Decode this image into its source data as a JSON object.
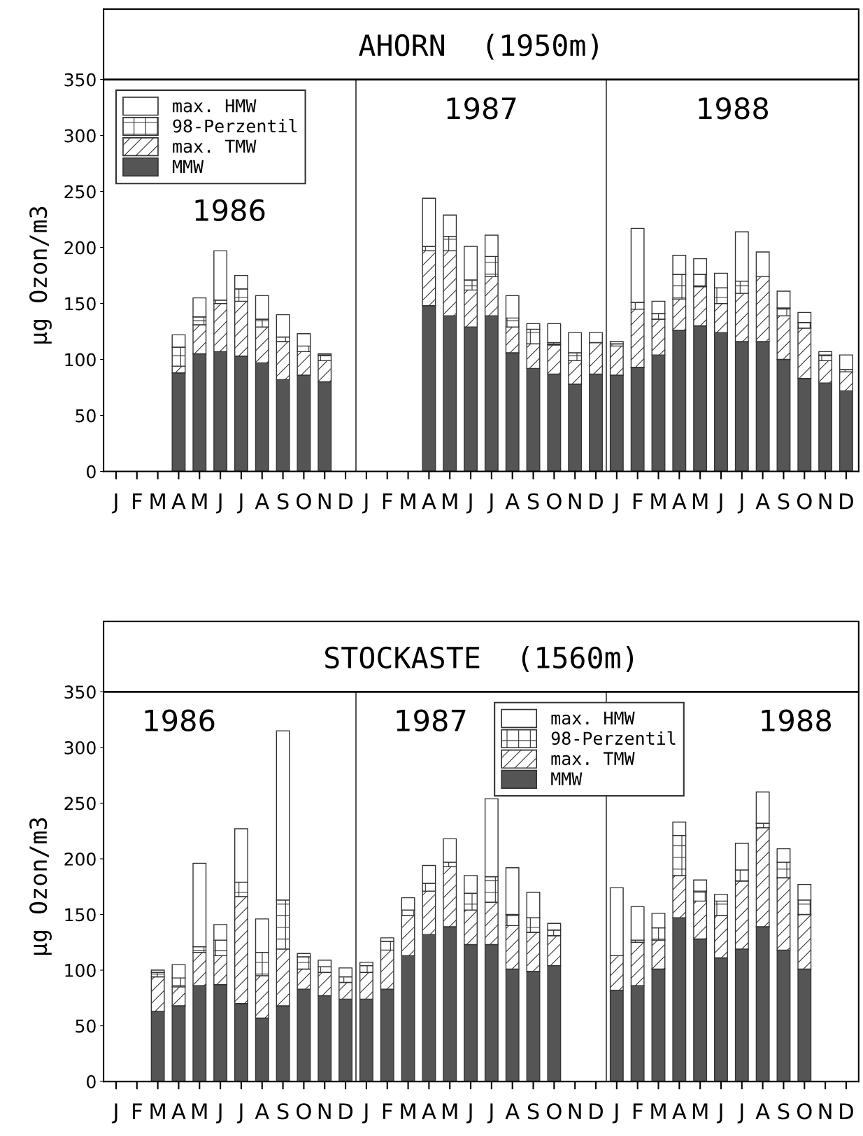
{
  "chart_data": [
    {
      "type": "bar",
      "stacked": true,
      "title": "AHORN  (1950m)",
      "ylabel": "µg Ozon/m3",
      "categories": [
        "J",
        "F",
        "M",
        "A",
        "M",
        "J",
        "J",
        "A",
        "S",
        "O",
        "N",
        "D",
        "J",
        "F",
        "M",
        "A",
        "M",
        "J",
        "J",
        "A",
        "S",
        "O",
        "N",
        "D",
        "J",
        "F",
        "M",
        "A",
        "M",
        "J",
        "J",
        "A",
        "S",
        "O",
        "N",
        "D"
      ],
      "series": [
        {
          "name": "MMW",
          "color": "#555555",
          "values": [
            null,
            null,
            null,
            88,
            105,
            107,
            103,
            97,
            82,
            86,
            80,
            null,
            null,
            null,
            null,
            148,
            139,
            129,
            139,
            106,
            92,
            87,
            78,
            87,
            86,
            93,
            104,
            126,
            130,
            124,
            116,
            116,
            100,
            83,
            79,
            72
          ]
        },
        {
          "name": "max. TMW",
          "color": "#333333",
          "values": [
            null,
            null,
            null,
            6,
            26,
            43,
            49,
            32,
            34,
            21,
            19,
            null,
            null,
            null,
            null,
            49,
            58,
            33,
            35,
            23,
            22,
            26,
            21,
            28,
            26,
            52,
            32,
            28,
            35,
            26,
            43,
            58,
            39,
            45,
            20,
            17
          ]
        },
        {
          "name": "98-Perzentil",
          "color": "#333333",
          "values": [
            null,
            null,
            null,
            17,
            7,
            3,
            11,
            7,
            4,
            5,
            5,
            null,
            null,
            null,
            null,
            4,
            13,
            9,
            18,
            8,
            13,
            2,
            7,
            null,
            2,
            6,
            5,
            22,
            11,
            14,
            11,
            null,
            7,
            5,
            5,
            2
          ]
        },
        {
          "name": "max. HMW",
          "color": "#ffffff",
          "values": [
            null,
            null,
            null,
            11,
            17,
            44,
            12,
            21,
            20,
            11,
            1,
            null,
            null,
            null,
            null,
            43,
            19,
            30,
            19,
            20,
            5,
            17,
            18,
            9,
            2,
            66,
            11,
            17,
            14,
            13,
            44,
            22,
            15,
            9,
            3,
            13
          ]
        }
      ],
      "annotations": [
        "1986",
        "1987",
        "1988"
      ],
      "ylim": [
        0,
        350
      ],
      "yticks": [
        0,
        50,
        100,
        150,
        200,
        250,
        300,
        350
      ],
      "grid": false,
      "legend": "top left"
    },
    {
      "type": "bar",
      "stacked": true,
      "title": "STOCKASTE  (1560m)",
      "ylabel": "µg Ozon/m3",
      "categories": [
        "J",
        "F",
        "M",
        "A",
        "M",
        "J",
        "J",
        "A",
        "S",
        "O",
        "N",
        "D",
        "J",
        "F",
        "M",
        "A",
        "M",
        "J",
        "J",
        "A",
        "S",
        "O",
        "N",
        "D",
        "J",
        "F",
        "M",
        "A",
        "M",
        "J",
        "J",
        "A",
        "S",
        "O",
        "N",
        "D"
      ],
      "series": [
        {
          "name": "MMW",
          "color": "#555555",
          "values": [
            null,
            null,
            63,
            68,
            86,
            87,
            70,
            57,
            68,
            83,
            77,
            74,
            74,
            83,
            113,
            132,
            139,
            123,
            123,
            101,
            99,
            104,
            null,
            null,
            82,
            86,
            101,
            147,
            128,
            111,
            119,
            139,
            118,
            101,
            null,
            null
          ]
        },
        {
          "name": "max. TMW",
          "color": "#333333",
          "values": [
            null,
            null,
            31,
            17,
            30,
            26,
            96,
            38,
            51,
            18,
            21,
            15,
            24,
            35,
            36,
            39,
            54,
            31,
            38,
            39,
            35,
            27,
            null,
            null,
            31,
            39,
            26,
            38,
            34,
            38,
            61,
            89,
            65,
            49,
            null,
            null
          ]
        },
        {
          "name": "98-Perzentil",
          "color": "#333333",
          "values": [
            null,
            null,
            4,
            8,
            5,
            14,
            13,
            21,
            44,
            11,
            5,
            5,
            6,
            8,
            5,
            7,
            4,
            15,
            23,
            10,
            13,
            5,
            null,
            null,
            null,
            2,
            11,
            36,
            9,
            13,
            10,
            4,
            14,
            13,
            null,
            null
          ]
        },
        {
          "name": "max. HMW",
          "color": "#ffffff",
          "values": [
            null,
            null,
            2,
            12,
            75,
            14,
            48,
            30,
            152,
            3,
            6,
            8,
            3,
            3,
            11,
            16,
            21,
            16,
            70,
            42,
            23,
            6,
            null,
            null,
            61,
            30,
            13,
            12,
            10,
            6,
            24,
            28,
            12,
            14,
            null,
            null
          ]
        }
      ],
      "annotations": [
        "1986",
        "1987",
        "1988"
      ],
      "ylim": [
        0,
        350
      ],
      "yticks": [
        0,
        50,
        100,
        150,
        200,
        250,
        300,
        350
      ],
      "grid": false,
      "legend": "top right"
    }
  ]
}
